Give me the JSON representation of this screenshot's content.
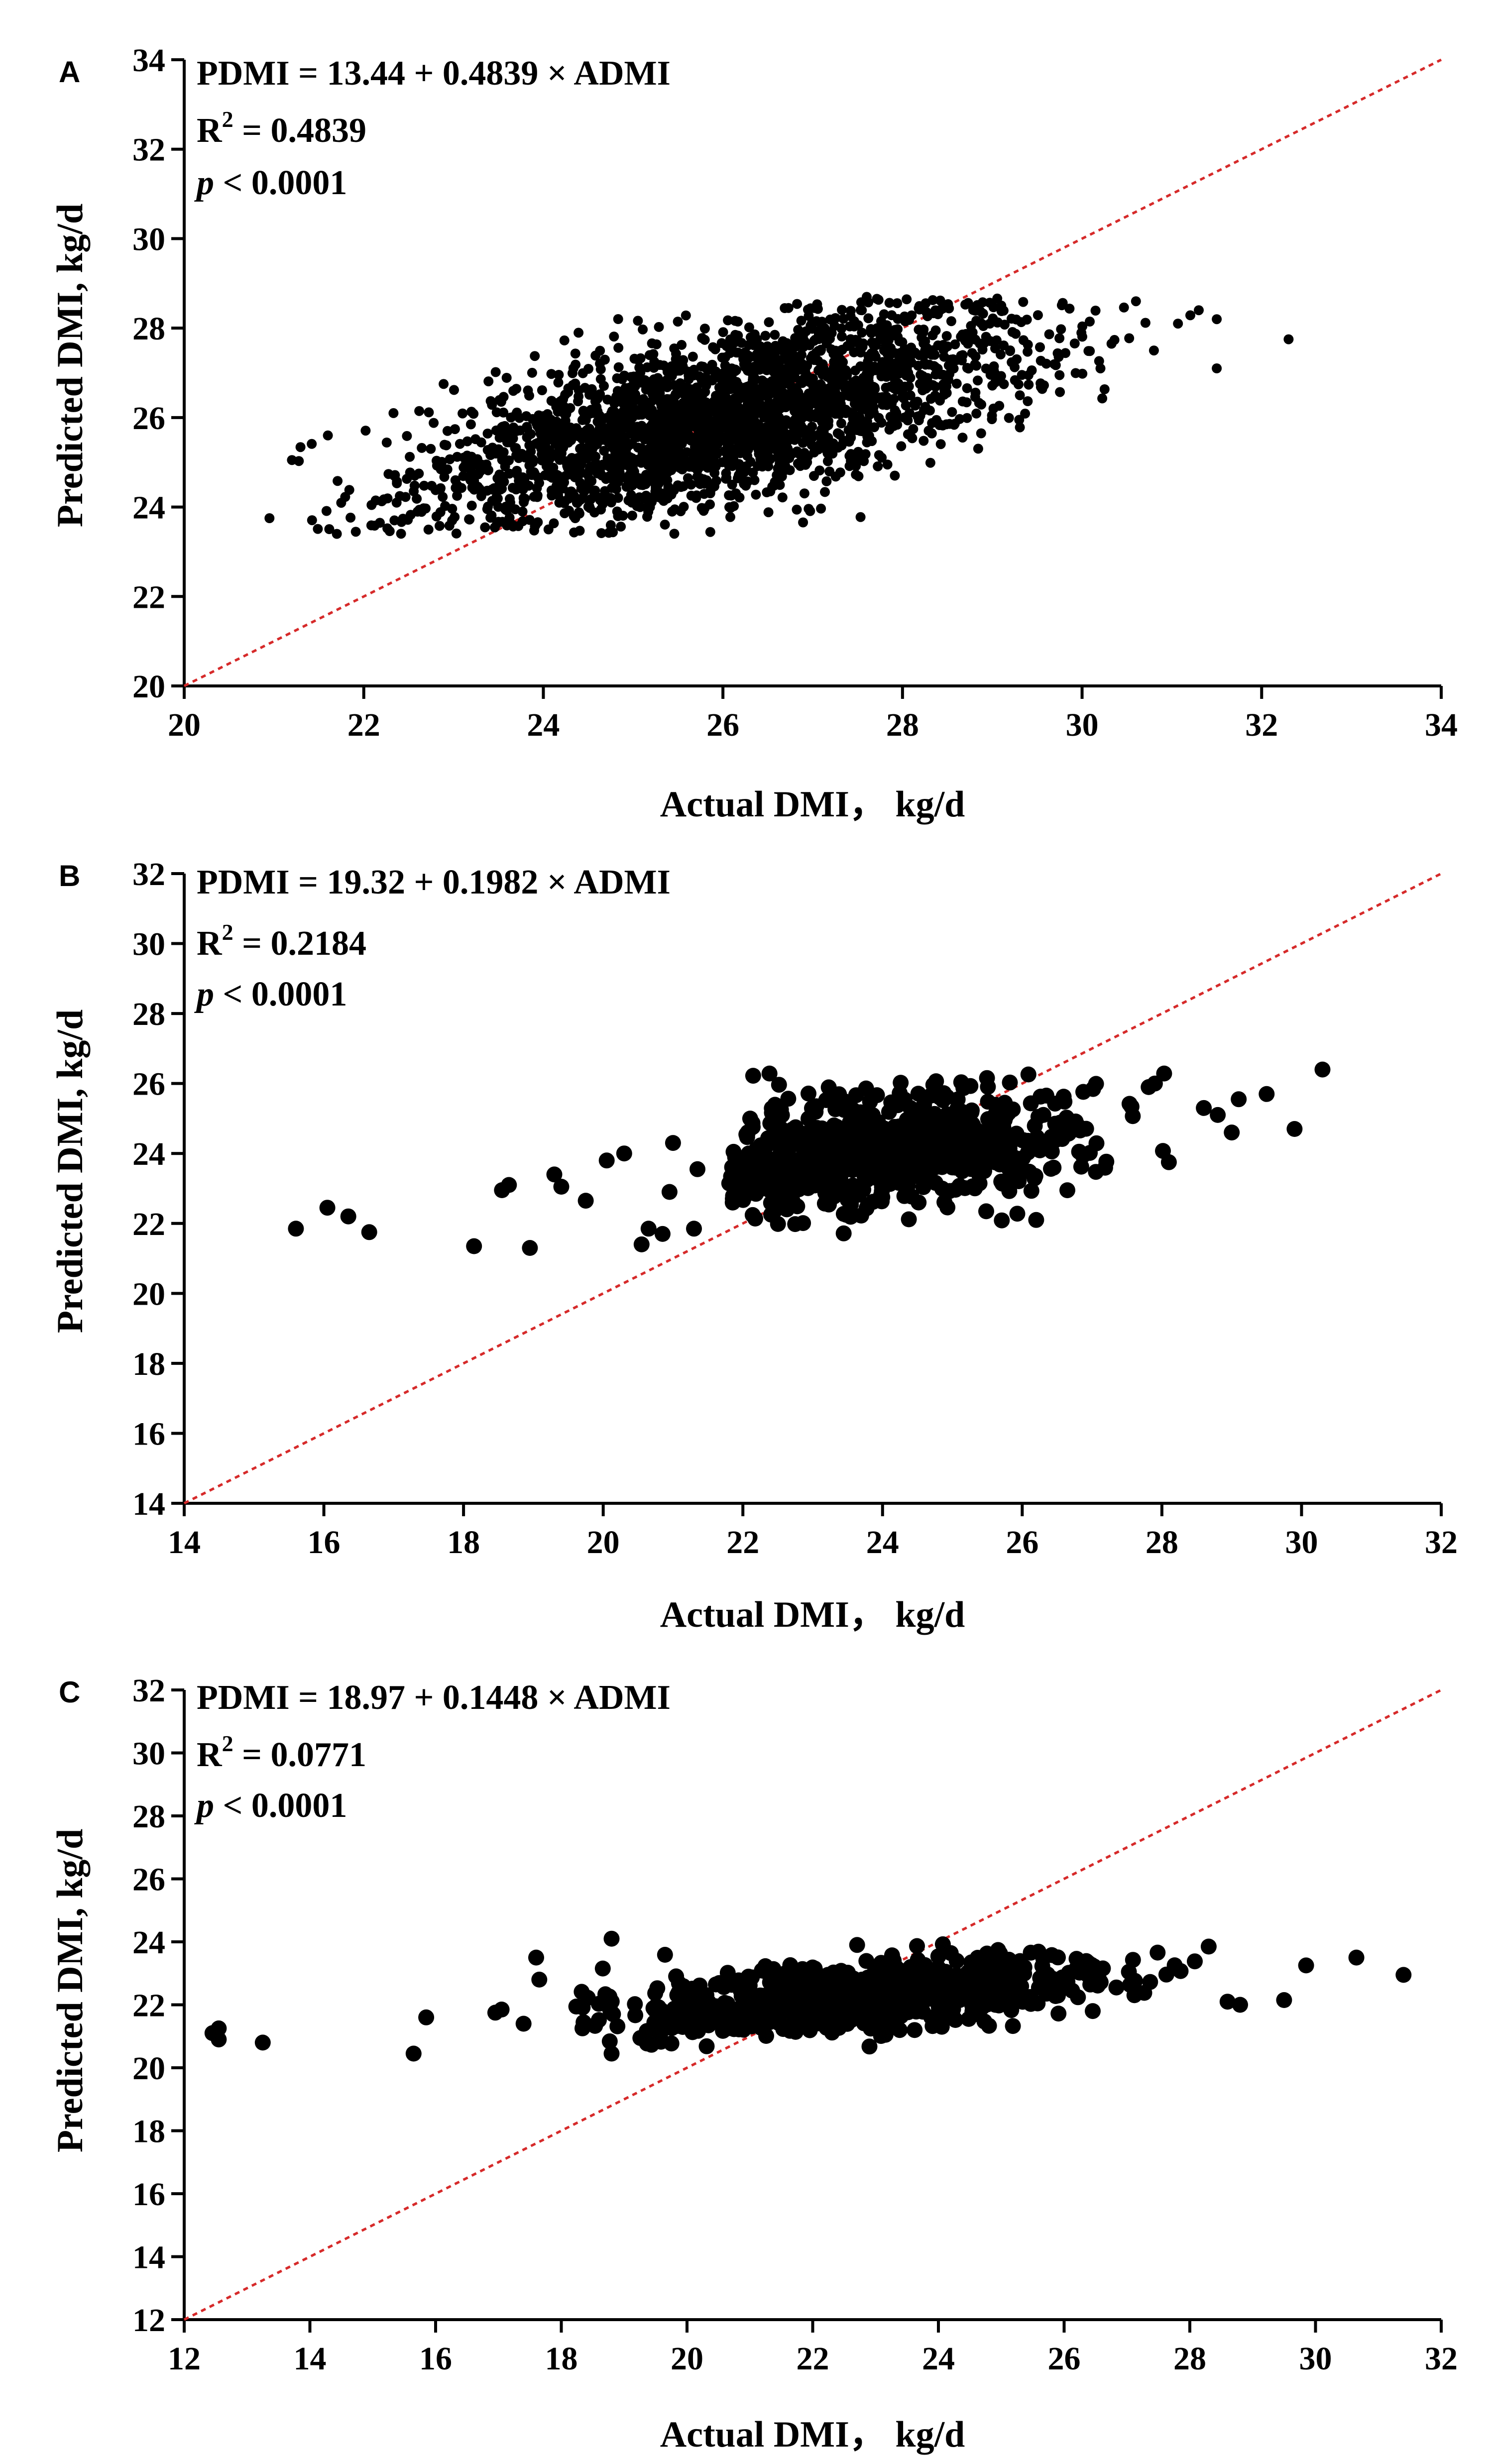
{
  "chart_data": [
    {
      "panel": "A",
      "type": "scatter",
      "xlabel": "Actual DMI， kg/d",
      "ylabel": "Predicted DMI, kg/d",
      "xlim": [
        20,
        34
      ],
      "ylim": [
        20,
        34
      ],
      "xticks": [
        20,
        22,
        24,
        26,
        28,
        30,
        32,
        34
      ],
      "yticks": [
        20,
        22,
        24,
        26,
        28,
        30,
        32,
        34
      ],
      "equation": "PDMI = 13.44 + 0.4839 × ADMI",
      "r2_label": "R",
      "r2_sup": "2",
      "r2_value": " = 0.4839",
      "p_symbol": "p",
      "p_value": " < 0.0001",
      "reference_line": {
        "x": [
          20,
          34
        ],
        "y": [
          20,
          34
        ],
        "color": "#d62a2a",
        "style": "dotted"
      },
      "point_color": "#000000",
      "point_count": 2600,
      "cloud": {
        "intercept": 13.44,
        "slope": 0.4839,
        "x_mean": 26.0,
        "x_sd": 1.75,
        "x_min": 20.9,
        "x_max": 32.3,
        "y_sd": 0.95,
        "y_min": 23.4,
        "y_max": 28.7
      },
      "outliers": [
        [
          20.95,
          23.75
        ],
        [
          21.2,
          25.05
        ],
        [
          21.6,
          25.6
        ],
        [
          21.7,
          23.4
        ],
        [
          31.5,
          27.1
        ],
        [
          32.3,
          27.75
        ],
        [
          30.6,
          28.6
        ],
        [
          31.3,
          28.4
        ],
        [
          31.5,
          28.2
        ],
        [
          29.3,
          25.95
        ],
        [
          30.8,
          27.5
        ]
      ],
      "point_radius": 10
    },
    {
      "panel": "B",
      "type": "scatter",
      "xlabel": "Actual DMI， kg/d",
      "ylabel": "Predicted DMI, kg/d",
      "xlim": [
        14,
        32
      ],
      "ylim": [
        14,
        32
      ],
      "xticks": [
        14,
        16,
        18,
        20,
        22,
        24,
        26,
        28,
        30,
        32
      ],
      "yticks": [
        14,
        16,
        18,
        20,
        22,
        24,
        26,
        28,
        30,
        32
      ],
      "equation": "PDMI = 19.32 + 0.1982 × ADMI",
      "r2_label": "R",
      "r2_sup": "2",
      "r2_value": " = 0.2184",
      "p_symbol": "p",
      "p_value": " < 0.0001",
      "reference_line": {
        "x": [
          14,
          32
        ],
        "y": [
          14,
          32
        ],
        "color": "#d62a2a",
        "style": "dotted"
      },
      "point_color": "#000000",
      "point_count": 700,
      "cloud": {
        "intercept": 19.32,
        "slope": 0.1982,
        "x_mean": 24.0,
        "x_sd": 1.55,
        "x_min": 21.8,
        "x_max": 28.2,
        "y_sd": 0.8,
        "y_min": 21.7,
        "y_max": 26.3
      },
      "outliers": [
        [
          15.6,
          21.85
        ],
        [
          16.05,
          22.45
        ],
        [
          16.35,
          22.2
        ],
        [
          16.65,
          21.75
        ],
        [
          18.15,
          21.35
        ],
        [
          18.95,
          21.3
        ],
        [
          18.55,
          22.95
        ],
        [
          18.65,
          23.1
        ],
        [
          19.3,
          23.4
        ],
        [
          19.4,
          23.05
        ],
        [
          19.75,
          22.65
        ],
        [
          20.05,
          23.8
        ],
        [
          20.3,
          24.0
        ],
        [
          20.55,
          21.4
        ],
        [
          20.65,
          21.85
        ],
        [
          20.85,
          21.7
        ],
        [
          20.95,
          22.9
        ],
        [
          21.0,
          24.3
        ],
        [
          21.3,
          21.85
        ],
        [
          21.35,
          23.55
        ],
        [
          28.6,
          25.3
        ],
        [
          29.0,
          24.6
        ],
        [
          29.1,
          25.55
        ],
        [
          29.5,
          25.7
        ],
        [
          29.9,
          24.7
        ],
        [
          30.3,
          26.4
        ],
        [
          28.1,
          23.75
        ],
        [
          27.9,
          26.0
        ],
        [
          28.8,
          25.1
        ],
        [
          26.2,
          22.1
        ]
      ],
      "point_radius": 16
    },
    {
      "panel": "C",
      "type": "scatter",
      "xlabel": "Actual DMI， kg/d",
      "ylabel": "Predicted DMI, kg/d",
      "xlim": [
        12,
        32
      ],
      "ylim": [
        12,
        32
      ],
      "xticks": [
        12,
        14,
        16,
        18,
        20,
        22,
        24,
        26,
        28,
        30,
        32
      ],
      "yticks": [
        12,
        14,
        16,
        18,
        20,
        22,
        24,
        26,
        28,
        30,
        32
      ],
      "equation": "PDMI = 18.97 + 0.1448 × ADMI",
      "r2_label": "R",
      "r2_sup": "2",
      "r2_value": " = 0.0771",
      "p_symbol": "p",
      "p_value": " < 0.0001",
      "reference_line": {
        "x": [
          12,
          32
        ],
        "y": [
          12,
          32
        ],
        "color": "#d62a2a",
        "style": "dotted"
      },
      "point_color": "#000000",
      "point_count": 700,
      "cloud": {
        "intercept": 18.97,
        "slope": 0.1448,
        "x_mean": 22.8,
        "x_sd": 2.1,
        "x_min": 18.2,
        "x_max": 28.3,
        "y_sd": 0.55,
        "y_min": 20.5,
        "y_max": 24.1
      },
      "outliers": [
        [
          12.45,
          21.1
        ],
        [
          12.55,
          21.25
        ],
        [
          12.55,
          20.9
        ],
        [
          13.25,
          20.8
        ],
        [
          15.65,
          20.45
        ],
        [
          15.85,
          21.6
        ],
        [
          16.95,
          21.75
        ],
        [
          17.05,
          21.85
        ],
        [
          17.4,
          21.4
        ],
        [
          17.6,
          23.5
        ],
        [
          17.65,
          22.8
        ],
        [
          18.8,
          24.1
        ],
        [
          18.8,
          20.45
        ],
        [
          28.6,
          22.1
        ],
        [
          28.8,
          22.0
        ],
        [
          29.5,
          22.15
        ],
        [
          29.85,
          23.25
        ],
        [
          30.65,
          23.5
        ],
        [
          31.4,
          22.95
        ],
        [
          28.3,
          23.85
        ]
      ],
      "point_radius": 16
    }
  ]
}
